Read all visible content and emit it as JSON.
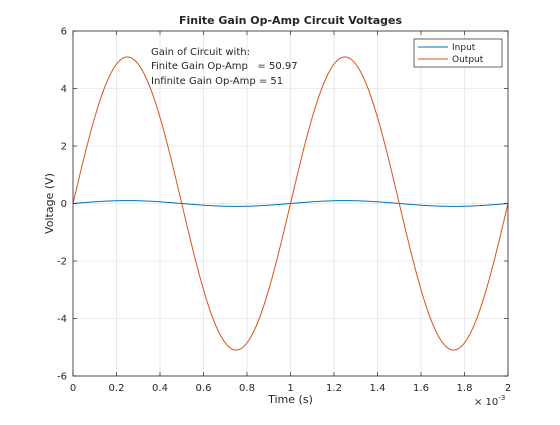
{
  "chart_data": {
    "type": "line",
    "title": "Finite Gain Op-Amp Circuit Voltages",
    "xlabel": "Time (s)",
    "ylabel": "Voltage (V)",
    "x_exponent_label": "× 10",
    "x_exponent_power": "-3",
    "xlim": [
      0,
      0.002
    ],
    "ylim": [
      -6,
      6
    ],
    "xticks": [
      0,
      0.0002,
      0.0004,
      0.0006,
      0.0008,
      0.001,
      0.0012,
      0.0014,
      0.0016,
      0.0018,
      0.002
    ],
    "xtick_labels": [
      "0",
      "0.2",
      "0.4",
      "0.6",
      "0.8",
      "1",
      "1.2",
      "1.4",
      "1.6",
      "1.8",
      "2"
    ],
    "yticks": [
      -6,
      -4,
      -2,
      0,
      2,
      4,
      6
    ],
    "ytick_labels": [
      "-6",
      "-4",
      "-2",
      "0",
      "2",
      "4",
      "6"
    ],
    "grid": true,
    "legend_position": "top-right",
    "frequency_hz": 1000,
    "series": [
      {
        "name": "Input",
        "amplitude": 0.1,
        "color": "#0072BD"
      },
      {
        "name": "Output",
        "amplitude": 5.097,
        "color": "#D95319"
      }
    ],
    "annotation": [
      "Gain of Circuit with:",
      "Finite Gain Op-Amp   = 50.97",
      "Infinite Gain Op-Amp = 51"
    ]
  }
}
